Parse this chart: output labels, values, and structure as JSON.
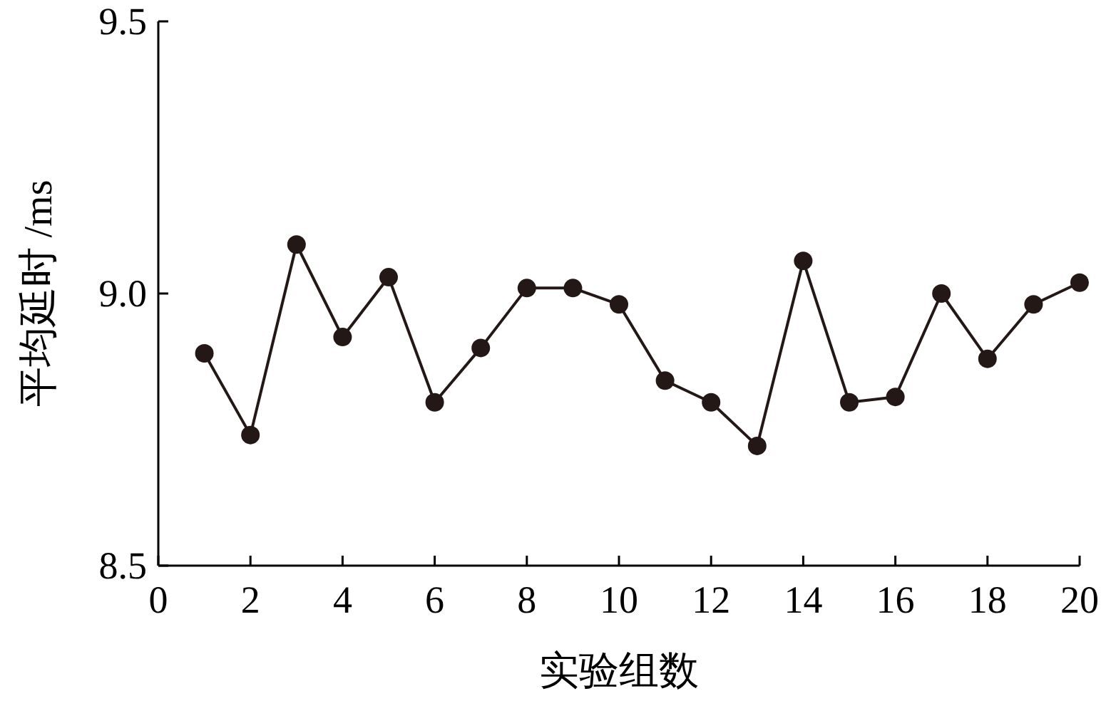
{
  "chart_data": {
    "type": "line",
    "xlabel": "实验组数",
    "ylabel": "平均延时 /ms",
    "x": [
      1,
      2,
      3,
      4,
      5,
      6,
      7,
      8,
      9,
      10,
      11,
      12,
      13,
      14,
      15,
      16,
      17,
      18,
      19,
      20
    ],
    "series": [
      {
        "color": "#231815",
        "values": [
          8.89,
          8.74,
          9.09,
          8.92,
          9.03,
          8.8,
          8.9,
          9.01,
          9.01,
          8.98,
          8.84,
          8.8,
          8.72,
          9.06,
          8.8,
          8.81,
          9.0,
          8.88,
          8.98,
          9.02
        ]
      }
    ],
    "xlim": [
      0,
      20
    ],
    "ylim": [
      8.5,
      9.5
    ],
    "xticks": [
      0,
      2,
      4,
      6,
      8,
      10,
      12,
      14,
      16,
      18,
      20
    ],
    "yticks": [
      {
        "value": 8.5,
        "label": "8.5"
      },
      {
        "value": 9.0,
        "label": "9.0"
      },
      {
        "value": 9.5,
        "label": "9.5"
      }
    ],
    "marker": "circle",
    "line_style": "solid"
  }
}
